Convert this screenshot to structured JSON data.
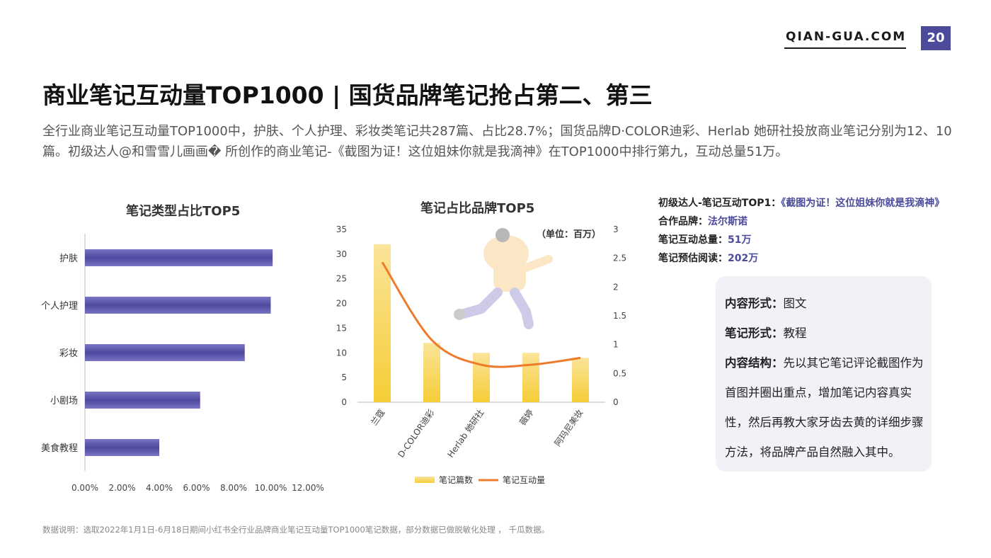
{
  "header": {
    "brand": "QIAN-GUA.COM",
    "page_number": "20"
  },
  "title": "商业笔记互动量TOP1000 | 国货品牌笔记抢占第二、第三",
  "summary": "全行业商业笔记互动量TOP1000中，护肤、个人护理、彩妆类笔记共287篇、占比28.7%；国货品牌D·COLOR迪彩、Herlab 她研社投放商业笔记分别为12、10篇。初级达人@和雪雪儿画画� 所创作的商业笔记-《截图为证！这位姐妹你就是我滴神》在TOP1000中排行第九，互动总量51万。",
  "chart_data": [
    {
      "type": "bar",
      "orientation": "horizontal",
      "title": "笔记类型占比TOP5",
      "categories": [
        "护肤",
        "个人护理",
        "彩妆",
        "小剧场",
        "美食教程"
      ],
      "values": [
        0.101,
        0.1,
        0.086,
        0.062,
        0.04
      ],
      "xlim": [
        0,
        0.12
      ],
      "x_ticks": [
        "0.00%",
        "2.00%",
        "4.00%",
        "6.00%",
        "8.00%",
        "10.00%",
        "12.00%"
      ],
      "color": "#5a53a8"
    },
    {
      "type": "bar",
      "title": "笔记占比品牌TOP5",
      "unit_note": "（单位：百万）",
      "categories": [
        "兰蔻",
        "D-COLOR迪彩",
        "Herlab 她研社",
        "薇婷",
        "阿玛尼美妆"
      ],
      "series": [
        {
          "name": "笔记篇数",
          "type": "bar",
          "axis": "left",
          "values": [
            32,
            12,
            10,
            10,
            9
          ],
          "color": "#f7d04e"
        },
        {
          "name": "笔记互动量",
          "type": "line",
          "axis": "right",
          "values": [
            2.43,
            1.08,
            0.65,
            0.65,
            0.77
          ],
          "color": "#ec7b2c"
        }
      ],
      "ylim_left": [
        0,
        35
      ],
      "y_ticks_left": [
        "0",
        "5",
        "10",
        "15",
        "20",
        "25",
        "30",
        "35"
      ],
      "ylim_right": [
        0,
        3
      ],
      "y_ticks_right": [
        "0",
        "0.5",
        "1",
        "1.5",
        "2",
        "2.5",
        "3"
      ],
      "legend": "bottom"
    }
  ],
  "stats": [
    {
      "label": "初级达人-笔记互动TOP1：",
      "value": "《截图为证！这位姐妹你就是我滴神》"
    },
    {
      "label": "合作品牌：",
      "value": "法尔斯诺"
    },
    {
      "label": "笔记互动总量：",
      "value": "51万"
    },
    {
      "label": "笔记预估阅读：",
      "value": "202万"
    }
  ],
  "card": {
    "form_label": "内容形式：",
    "form_value": "图文",
    "type_label": "笔记形式：",
    "type_value": "教程",
    "structure_label": "内容结构：",
    "structure_value": "先以其它笔记评论截图作为首图并圈出重点，增加笔记内容真实性，然后再教大家牙齿去黄的详细步骤方法，将品牌产品自然融入其中。"
  },
  "footnote": "数据说明：选取2022年1月1日-6月18日期间小红书全行业品牌商业笔记互动量TOP1000笔记数据，部分数据已做脱敏化处理 ， 千瓜数据。"
}
